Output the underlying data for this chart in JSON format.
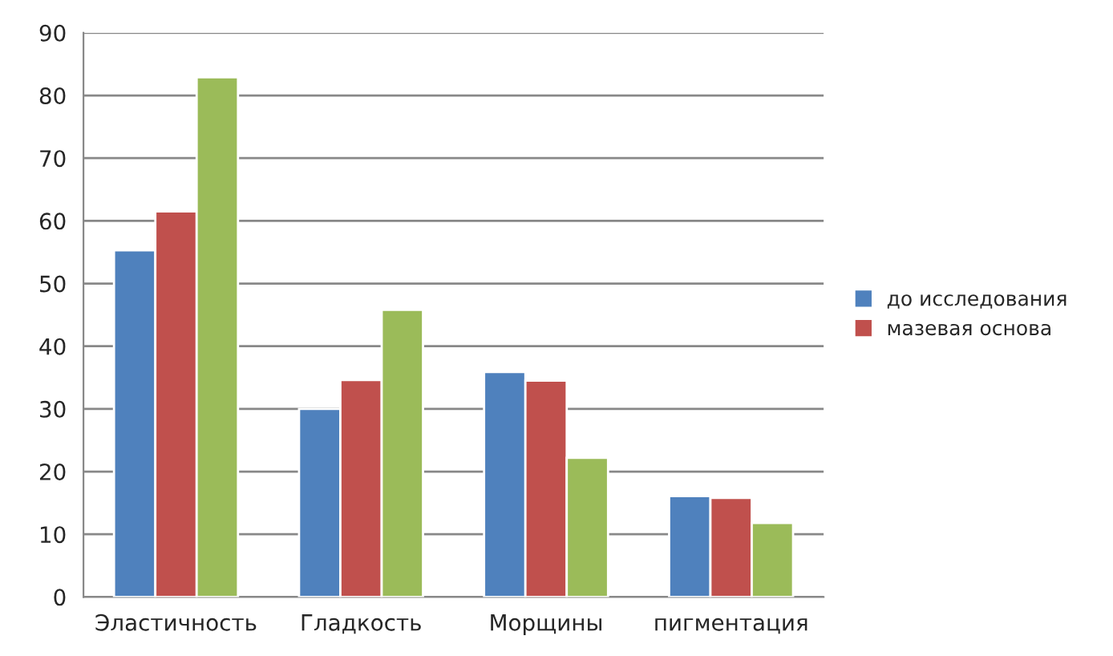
{
  "chart_data": {
    "type": "bar",
    "categories": [
      "Эластичность",
      "Гладкость",
      "Морщины",
      "пигментация"
    ],
    "series": [
      {
        "name": "до исследования",
        "color": "#4f81bd",
        "values": [
          55.3,
          30.0,
          35.9,
          16.1
        ]
      },
      {
        "name": "мазевая основа",
        "color": "#c0504d",
        "values": [
          61.5,
          34.6,
          34.5,
          15.8
        ]
      },
      {
        "color": "#9bbb59",
        "values": [
          82.9,
          45.8,
          22.2,
          11.8
        ]
      }
    ],
    "ylim": [
      0,
      90
    ],
    "yticks": [
      0,
      10,
      20,
      30,
      40,
      50,
      60,
      70,
      80,
      90
    ],
    "grid": "y",
    "legend": "right"
  }
}
